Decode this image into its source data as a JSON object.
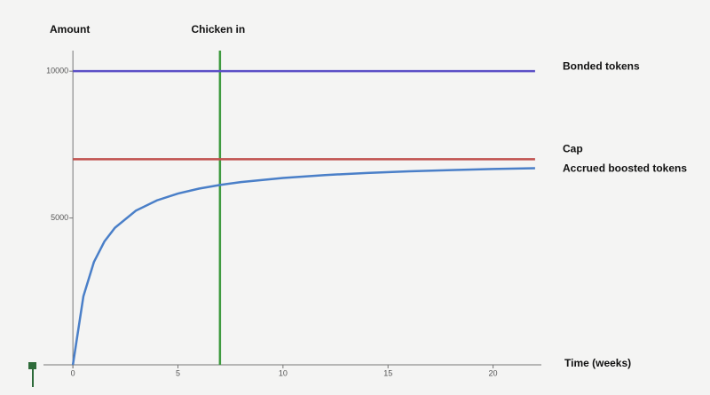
{
  "chart_data": {
    "type": "line",
    "x_label": "Time (weeks)",
    "y_label": "Amount",
    "xlim": [
      -1.4,
      22.3
    ],
    "ylim": [
      0,
      10700
    ],
    "xticks": [
      0,
      5,
      10,
      15,
      20
    ],
    "yticks": [
      5000,
      10000
    ],
    "series": [
      {
        "name": "Bonded tokens",
        "color": "#5b4fc6",
        "x": [
          0,
          22
        ],
        "values": [
          10000,
          10000
        ]
      },
      {
        "name": "Cap",
        "color": "#c0504d",
        "x": [
          0,
          22
        ],
        "values": [
          7000,
          7000
        ]
      },
      {
        "name": "Accrued boosted tokens",
        "color": "#4a7fc8",
        "x": [
          0,
          0.5,
          1,
          1.5,
          2,
          3,
          4,
          5,
          6,
          7,
          8,
          10,
          12,
          14,
          16,
          18,
          20,
          22
        ],
        "values": [
          0,
          2333,
          3500,
          4200,
          4667,
          5250,
          5600,
          5833,
          6000,
          6125,
          6222,
          6364,
          6462,
          6533,
          6588,
          6632,
          6667,
          6696
        ]
      }
    ],
    "vlines": [
      {
        "x": 7,
        "label": "Chicken in",
        "color": "#3f9a3f"
      }
    ]
  }
}
